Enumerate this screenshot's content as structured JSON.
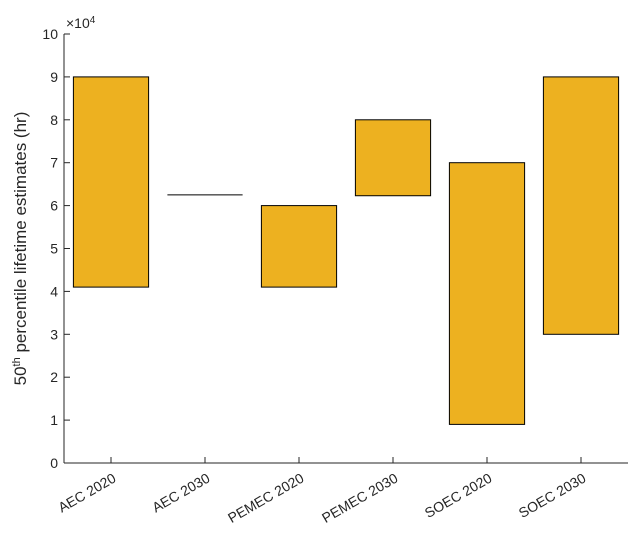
{
  "chart_data": {
    "type": "bar",
    "subtype": "floating-range",
    "categories": [
      "AEC 2020",
      "AEC 2030",
      "PEMEC 2020",
      "PEMEC 2030",
      "SOEC 2020",
      "SOEC 2030"
    ],
    "ranges": [
      [
        41000,
        90000
      ],
      [
        62500,
        62500
      ],
      [
        41000,
        60000
      ],
      [
        62300,
        80000
      ],
      [
        9000,
        70000
      ],
      [
        30000,
        90000
      ]
    ],
    "ylabel_base": "50",
    "ylabel_sup": "th",
    "ylabel_rest": " percentile lifetime estimates (hr)",
    "y_multiplier_base": "×10",
    "y_multiplier_exp": "4",
    "ylim": [
      0,
      100000
    ],
    "yticks": [
      0,
      10000,
      20000,
      30000,
      40000,
      50000,
      60000,
      70000,
      80000,
      90000,
      100000
    ],
    "ytick_labels": [
      "0",
      "1",
      "2",
      "3",
      "4",
      "5",
      "6",
      "7",
      "8",
      "9",
      "10"
    ],
    "bar_color": "#EDB120",
    "edge_color": "#000000",
    "grid": false
  }
}
